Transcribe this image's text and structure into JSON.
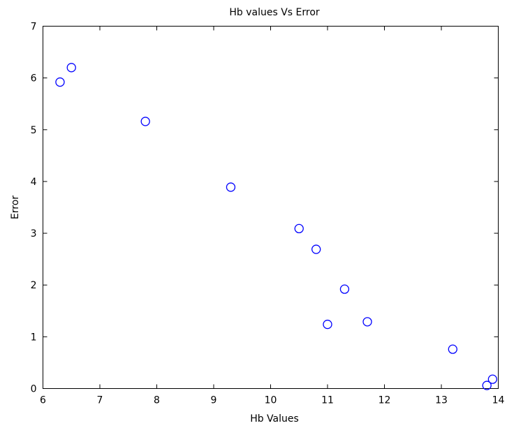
{
  "chart_data": {
    "type": "scatter",
    "title": "Hb values Vs Error",
    "xlabel": "Hb Values",
    "ylabel": "Error",
    "xlim": [
      6,
      14
    ],
    "ylim": [
      0,
      7
    ],
    "xticks": [
      "6",
      "7",
      "8",
      "9",
      "10",
      "11",
      "12",
      "13",
      "14"
    ],
    "yticks": [
      "0",
      "1",
      "2",
      "3",
      "4",
      "5",
      "6",
      "7"
    ],
    "grid": false,
    "marker": "open-circle",
    "marker_color": "#0000ff",
    "series": [
      {
        "points": [
          {
            "x": 6.3,
            "y": 5.92
          },
          {
            "x": 6.5,
            "y": 6.2
          },
          {
            "x": 7.8,
            "y": 5.16
          },
          {
            "x": 9.3,
            "y": 3.89
          },
          {
            "x": 10.5,
            "y": 3.09
          },
          {
            "x": 10.8,
            "y": 2.69
          },
          {
            "x": 11.0,
            "y": 1.24
          },
          {
            "x": 11.3,
            "y": 1.92
          },
          {
            "x": 11.7,
            "y": 1.29
          },
          {
            "x": 13.2,
            "y": 0.76
          },
          {
            "x": 13.8,
            "y": 0.06
          },
          {
            "x": 13.9,
            "y": 0.18
          }
        ]
      }
    ]
  }
}
